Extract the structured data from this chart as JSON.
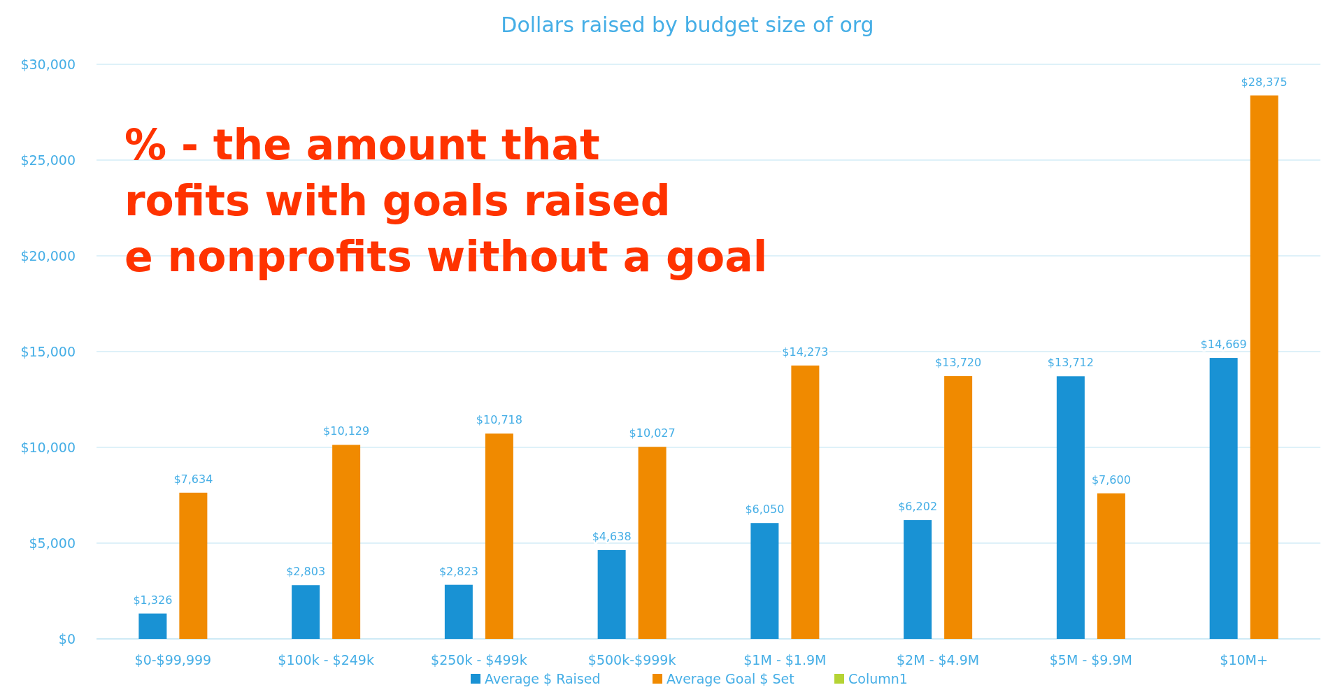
{
  "chart_data": {
    "type": "bar",
    "title": "Dollars raised by budget size of org",
    "categories": [
      "$0-$99,999",
      "$100k - $249k",
      "$250k - $499k",
      "$500k-$999k",
      "$1M - $1.9M",
      "$2M - $4.9M",
      "$5M - $9.9M",
      "$10M+"
    ],
    "series": [
      {
        "name": "Average $ Raised",
        "color": "#1992d4",
        "values": [
          1326,
          2803,
          2823,
          4638,
          6050,
          6202,
          13712,
          14669
        ]
      },
      {
        "name": "Average Goal $ Set",
        "color": "#f08a00",
        "values": [
          7634,
          10129,
          10718,
          10027,
          14273,
          13720,
          7600,
          28375
        ]
      },
      {
        "name": "Column1",
        "color": "#b5d334",
        "values": [
          null,
          null,
          null,
          null,
          null,
          null,
          null,
          null
        ]
      }
    ],
    "value_labels": [
      [
        "$1,326",
        "$2,803",
        "$2,823",
        "$4,638",
        "$6,050",
        "$6,202",
        "$13,712",
        "$14,669"
      ],
      [
        "$7,634",
        "$10,129",
        "$10,718",
        "$10,027",
        "$14,273",
        "$13,720",
        "$7,600",
        "$28,375"
      ],
      [
        null,
        null,
        null,
        null,
        null,
        null,
        null,
        null
      ]
    ],
    "ylim": [
      0,
      30000
    ],
    "yticks": [
      {
        "value": 0,
        "label": "$0"
      },
      {
        "value": 5000,
        "label": "$5,000"
      },
      {
        "value": 10000,
        "label": "$10,000"
      },
      {
        "value": 15000,
        "label": "$15,000"
      },
      {
        "value": 20000,
        "label": "$20,000"
      },
      {
        "value": 25000,
        "label": "$25,000"
      },
      {
        "value": 30000,
        "label": "$30,000"
      }
    ],
    "grid": "y",
    "legend": "bottom",
    "annotations": [
      "% - the amount that",
      "rofits with goals raised",
      "e nonprofits without a goal"
    ]
  }
}
